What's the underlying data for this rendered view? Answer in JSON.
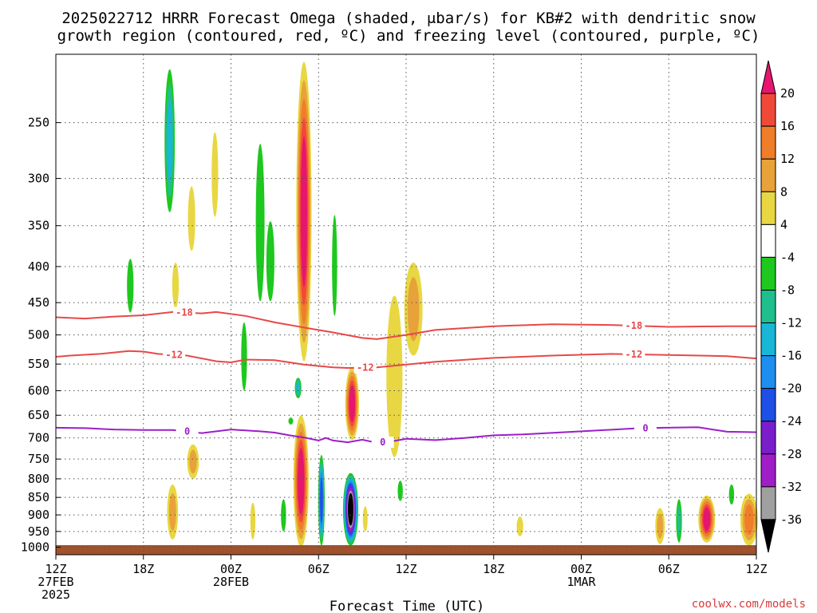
{
  "chart_data": {
    "type": "heatmap",
    "title_line1": "2025022712 HRRR Forecast Omega (shaded, μbar/s) for KB#2 with dendritic snow",
    "title_line2": "growth region (contoured, red, ºC) and freezing level (contoured, purple, ºC)",
    "xlabel": "Forecast Time (UTC)",
    "credit": "coolwx.com/models",
    "x_ticks": [
      {
        "hour": 0,
        "l1": "12Z",
        "l2": "27FEB",
        "l3": "2025"
      },
      {
        "hour": 6,
        "l1": "18Z",
        "l2": "",
        "l3": ""
      },
      {
        "hour": 12,
        "l1": "00Z",
        "l2": "28FEB",
        "l3": ""
      },
      {
        "hour": 18,
        "l1": "06Z",
        "l2": "",
        "l3": ""
      },
      {
        "hour": 24,
        "l1": "12Z",
        "l2": "",
        "l3": ""
      },
      {
        "hour": 30,
        "l1": "18Z",
        "l2": "",
        "l3": ""
      },
      {
        "hour": 36,
        "l1": "00Z",
        "l2": "1MAR",
        "l3": ""
      },
      {
        "hour": 42,
        "l1": "06Z",
        "l2": "",
        "l3": ""
      },
      {
        "hour": 48,
        "l1": "12Z",
        "l2": "",
        "l3": ""
      }
    ],
    "xlim": [
      0,
      48
    ],
    "y_ticks": [
      250,
      300,
      350,
      400,
      450,
      500,
      550,
      600,
      650,
      700,
      750,
      800,
      850,
      900,
      950,
      1000
    ],
    "ylim": [
      1025,
      200
    ],
    "y_scale": "log-pressure",
    "grid": true,
    "colorbar": {
      "labels": [
        "20",
        "16",
        "12",
        "8",
        "4",
        "-4",
        "-8",
        "-12",
        "-16",
        "-20",
        "-24",
        "-28",
        "-32",
        "-36"
      ],
      "colors": [
        "#e6156e",
        "#f0493a",
        "#f07d2a",
        "#e8a23a",
        "#e8d742",
        "#ffffff",
        "#1ec81e",
        "#1ebf8c",
        "#19b6d6",
        "#1e8ef0",
        "#1e4fe6",
        "#7a1ecc",
        "#a01ec8",
        "#a0a0a0",
        "#000000"
      ]
    },
    "contours": [
      {
        "name": "-18",
        "color": "#e84848",
        "points": [
          [
            0,
            472
          ],
          [
            2,
            474
          ],
          [
            4,
            471
          ],
          [
            6,
            469
          ],
          [
            8,
            464
          ],
          [
            10,
            466
          ],
          [
            11,
            464
          ],
          [
            13,
            470
          ],
          [
            15,
            480
          ],
          [
            17,
            488
          ],
          [
            19,
            496
          ],
          [
            21,
            505
          ],
          [
            22,
            507
          ],
          [
            24,
            500
          ],
          [
            26,
            492
          ],
          [
            30,
            486
          ],
          [
            34,
            483
          ],
          [
            38,
            484
          ],
          [
            42,
            487
          ],
          [
            46,
            486
          ],
          [
            48,
            486
          ]
        ],
        "labels": [
          {
            "hour": 8.8,
            "text": "-18"
          },
          {
            "hour": 39.6,
            "text": "-18"
          }
        ]
      },
      {
        "name": "-12",
        "color": "#e84848",
        "points": [
          [
            0,
            537
          ],
          [
            1,
            535
          ],
          [
            3,
            532
          ],
          [
            5,
            527
          ],
          [
            6,
            528
          ],
          [
            7,
            532
          ],
          [
            9,
            535
          ],
          [
            11,
            545
          ],
          [
            12,
            547
          ],
          [
            13,
            542
          ],
          [
            15,
            543
          ],
          [
            17,
            551
          ],
          [
            19,
            556
          ],
          [
            20,
            557
          ],
          [
            22,
            556
          ],
          [
            24,
            551
          ],
          [
            26,
            546
          ],
          [
            30,
            539
          ],
          [
            34,
            535
          ],
          [
            38,
            532
          ],
          [
            42,
            534
          ],
          [
            46,
            536
          ],
          [
            48,
            540
          ]
        ],
        "labels": [
          {
            "hour": 8.1,
            "text": "-12"
          },
          {
            "hour": 21.2,
            "text": "-12"
          },
          {
            "hour": 39.6,
            "text": "-12"
          }
        ]
      },
      {
        "name": "0",
        "color": "#9c1ec8",
        "points": [
          [
            0,
            677
          ],
          [
            2,
            678
          ],
          [
            4,
            681
          ],
          [
            6,
            682
          ],
          [
            8,
            682
          ],
          [
            10,
            689
          ],
          [
            12,
            681
          ],
          [
            14,
            685
          ],
          [
            15,
            688
          ],
          [
            16,
            694
          ],
          [
            17,
            699
          ],
          [
            18,
            706
          ],
          [
            18.5,
            700
          ],
          [
            19,
            706
          ],
          [
            20,
            710
          ],
          [
            21,
            704
          ],
          [
            22,
            711
          ],
          [
            23,
            708
          ],
          [
            24,
            702
          ],
          [
            26,
            705
          ],
          [
            28,
            700
          ],
          [
            30,
            694
          ],
          [
            32,
            692
          ],
          [
            36,
            685
          ],
          [
            40,
            678
          ],
          [
            44,
            676
          ],
          [
            46,
            686
          ],
          [
            48,
            687
          ]
        ],
        "labels": [
          {
            "hour": 9.0,
            "text": "0"
          },
          {
            "hour": 22.4,
            "text": "0"
          },
          {
            "hour": 40.4,
            "text": "0"
          }
        ]
      }
    ],
    "omega_cells": [
      {
        "h": 7.8,
        "pTop": 210,
        "pBot": 335,
        "w": 0.7,
        "levels": [
          -4,
          -8,
          -12
        ]
      },
      {
        "h": 9.3,
        "pTop": 308,
        "pBot": 380,
        "w": 0.5,
        "levels": [
          4
        ]
      },
      {
        "h": 10.9,
        "pTop": 258,
        "pBot": 340,
        "w": 0.45,
        "levels": [
          4
        ]
      },
      {
        "h": 8.2,
        "pTop": 395,
        "pBot": 458,
        "w": 0.45,
        "levels": [
          4
        ]
      },
      {
        "h": 5.1,
        "pTop": 390,
        "pBot": 465,
        "w": 0.45,
        "levels": [
          -4
        ]
      },
      {
        "h": 14.0,
        "pTop": 268,
        "pBot": 448,
        "w": 0.6,
        "levels": [
          -4
        ]
      },
      {
        "h": 14.7,
        "pTop": 345,
        "pBot": 448,
        "w": 0.55,
        "levels": [
          -4
        ]
      },
      {
        "h": 12.9,
        "pTop": 480,
        "pBot": 600,
        "w": 0.4,
        "levels": [
          -4
        ]
      },
      {
        "h": 16.6,
        "pTop": 575,
        "pBot": 615,
        "w": 0.45,
        "levels": [
          -4,
          -8,
          -12
        ]
      },
      {
        "h": 16.1,
        "pTop": 655,
        "pBot": 670,
        "w": 0.15,
        "levels": [
          -4
        ]
      },
      {
        "h": 17.0,
        "pTop": 205,
        "pBot": 545,
        "w": 1.05,
        "levels": [
          4,
          8,
          12,
          16,
          20
        ]
      },
      {
        "h": 19.1,
        "pTop": 338,
        "pBot": 470,
        "w": 0.35,
        "levels": [
          -4
        ]
      },
      {
        "h": 24.5,
        "pTop": 395,
        "pBot": 535,
        "w": 1.25,
        "levels": [
          4,
          8
        ]
      },
      {
        "h": 23.2,
        "pTop": 440,
        "pBot": 745,
        "w": 1.1,
        "levels": [
          4
        ]
      },
      {
        "h": 20.3,
        "pTop": 555,
        "pBot": 705,
        "w": 0.95,
        "levels": [
          4,
          8,
          12,
          16,
          20
        ]
      },
      {
        "h": 16.8,
        "pTop": 650,
        "pBot": 1000,
        "w": 1.05,
        "levels": [
          4,
          8,
          12,
          16,
          20
        ]
      },
      {
        "h": 18.2,
        "pTop": 740,
        "pBot": 995,
        "w": 0.45,
        "levels": [
          -4,
          -8,
          -12,
          -16,
          -20
        ]
      },
      {
        "h": 20.2,
        "pTop": 785,
        "pBot": 995,
        "w": 1.05,
        "levels": [
          -4,
          -8,
          -12,
          -16,
          -20,
          -24,
          -28,
          -32,
          -36
        ]
      },
      {
        "h": 21.2,
        "pTop": 875,
        "pBot": 950,
        "w": 0.3,
        "levels": [
          4
        ]
      },
      {
        "h": 15.6,
        "pTop": 855,
        "pBot": 950,
        "w": 0.35,
        "levels": [
          -4
        ]
      },
      {
        "h": 23.6,
        "pTop": 805,
        "pBot": 860,
        "w": 0.35,
        "levels": [
          -4
        ]
      },
      {
        "h": 9.4,
        "pTop": 715,
        "pBot": 800,
        "w": 0.8,
        "levels": [
          4,
          8
        ]
      },
      {
        "h": 8.0,
        "pTop": 815,
        "pBot": 975,
        "w": 0.75,
        "levels": [
          4,
          8
        ]
      },
      {
        "h": 13.5,
        "pTop": 865,
        "pBot": 975,
        "w": 0.35,
        "levels": [
          4
        ]
      },
      {
        "h": 31.8,
        "pTop": 905,
        "pBot": 965,
        "w": 0.45,
        "levels": [
          4
        ]
      },
      {
        "h": 41.4,
        "pTop": 880,
        "pBot": 990,
        "w": 0.65,
        "levels": [
          4,
          8
        ]
      },
      {
        "h": 42.7,
        "pTop": 855,
        "pBot": 985,
        "w": 0.4,
        "levels": [
          -4,
          -8
        ]
      },
      {
        "h": 44.6,
        "pTop": 845,
        "pBot": 985,
        "w": 1.15,
        "levels": [
          4,
          8,
          12,
          16,
          20
        ]
      },
      {
        "h": 46.3,
        "pTop": 815,
        "pBot": 870,
        "w": 0.35,
        "levels": [
          -4
        ]
      },
      {
        "h": 47.5,
        "pTop": 840,
        "pBot": 995,
        "w": 1.2,
        "levels": [
          4,
          8,
          12
        ]
      }
    ]
  }
}
